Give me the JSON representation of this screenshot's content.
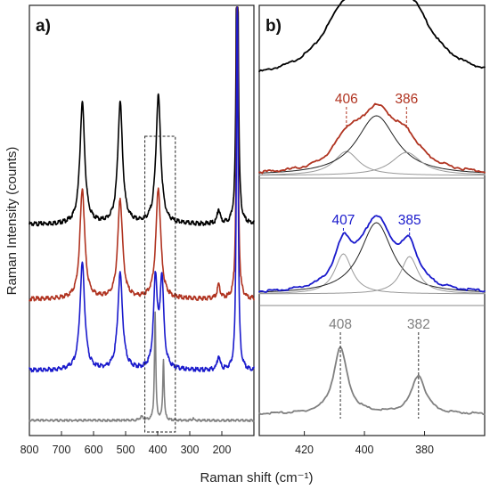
{
  "chart_data": [
    {
      "panel_label": "a)",
      "type": "line",
      "xlabel": "Raman shift (cm⁻¹)",
      "ylabel": "Raman Intensity (counts)",
      "xlim": [
        800,
        100
      ],
      "x_reversed": true,
      "x_ticks": [
        "800",
        "700",
        "600",
        "500",
        "400",
        "300",
        "200"
      ],
      "y_ticks_visible": false,
      "grid": false,
      "highlight_box_x_range": [
        440,
        345
      ],
      "series": [
        {
          "color": "#000000",
          "offset": 0.55,
          "peaks": [
            [
              635,
              0.34,
              9
            ],
            [
              517,
              0.34,
              9
            ],
            [
              398,
              0.36,
              9
            ],
            [
              210,
              0.04,
              5
            ],
            [
              152,
              1.2,
              3
            ]
          ]
        },
        {
          "color": "#b03320",
          "offset": 0.34,
          "peaks": [
            [
              635,
              0.31,
              9
            ],
            [
              517,
              0.28,
              9
            ],
            [
              398,
              0.31,
              9
            ],
            [
              210,
              0.04,
              5
            ],
            [
              152,
              1.0,
              3
            ]
          ]
        },
        {
          "color": "#1a1acc",
          "offset": 0.14,
          "peaks": [
            [
              635,
              0.3,
              9
            ],
            [
              517,
              0.27,
              9
            ],
            [
              407,
              0.25,
              7
            ],
            [
              387,
              0.25,
              7
            ],
            [
              210,
              0.04,
              5
            ],
            [
              152,
              1.1,
              3
            ]
          ]
        },
        {
          "color": "#808080",
          "offset": 0.0,
          "peaks": [
            [
              450,
              0.01,
              6
            ],
            [
              408,
              0.3,
              2.5
            ],
            [
              382,
              0.17,
              2.5
            ],
            [
              290,
              0.005,
              3
            ]
          ]
        }
      ]
    },
    {
      "panel_label": "b)",
      "type": "line",
      "xlabel": "",
      "ylabel": "",
      "xlim": [
        435,
        360
      ],
      "x_reversed": true,
      "x_ticks": [
        "420",
        "400",
        "380"
      ],
      "grid": false,
      "stacks": [
        {
          "name": "black-stack",
          "color": "#000000",
          "fit_lines": false,
          "peaks": [
            [
              407,
              0.55,
              8
            ],
            [
              394,
              0.9,
              13
            ],
            [
              384,
              0.45,
              8
            ]
          ],
          "labels": []
        },
        {
          "name": "red-stack",
          "color": "#b03320",
          "fit_lines": true,
          "peaks": [
            [
              406,
              0.25,
              5
            ],
            [
              396,
              0.62,
              8
            ],
            [
              386,
              0.24,
              6
            ]
          ],
          "labels": [
            {
              "x": 406,
              "text": "406"
            },
            {
              "x": 386,
              "text": "386"
            }
          ]
        },
        {
          "name": "blue-stack",
          "color": "#1a1acc",
          "fit_lines": true,
          "peaks": [
            [
              407,
              0.45,
              3.5
            ],
            [
              396,
              0.8,
              6.5
            ],
            [
              385,
              0.42,
              3.5
            ]
          ],
          "labels": [
            {
              "x": 407,
              "text": "407"
            },
            {
              "x": 385,
              "text": "385"
            }
          ]
        },
        {
          "name": "gray-stack",
          "color": "#808080",
          "fit_lines": false,
          "peaks": [
            [
              408,
              0.95,
              2.8
            ],
            [
              382,
              0.55,
              2.8
            ]
          ],
          "labels": [
            {
              "x": 408,
              "text": "408"
            },
            {
              "x": 382,
              "text": "382"
            }
          ]
        }
      ]
    }
  ]
}
